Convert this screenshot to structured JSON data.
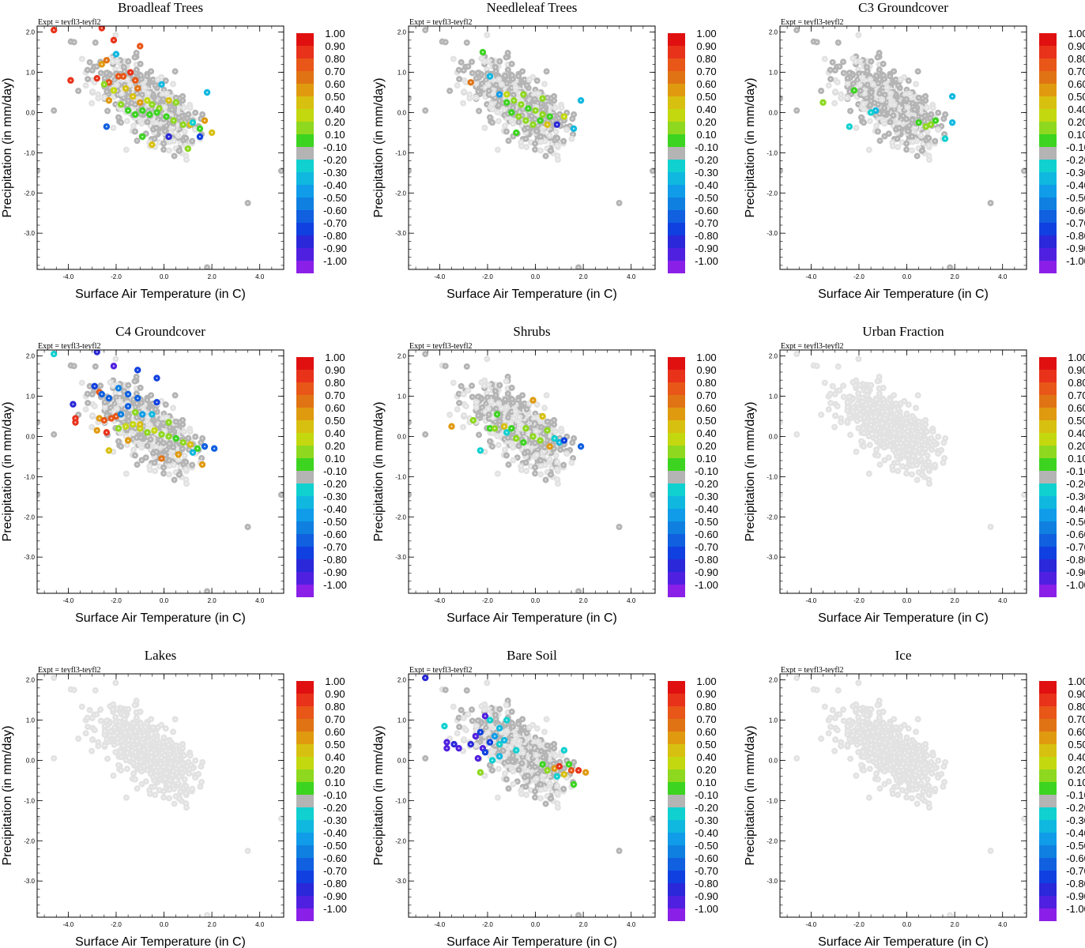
{
  "figure": {
    "experiment_label": "Expt = teyfl3-teyfl2",
    "xlabel": "Surface Air Temperature (in C)",
    "ylabel": "Precipitation (in mm/day)"
  },
  "colorbar": {
    "labels": [
      "1.00",
      "0.90",
      "0.80",
      "0.70",
      "0.60",
      "0.50",
      "0.40",
      "0.20",
      "0.10",
      "-0.10",
      "-0.20",
      "-0.30",
      "-0.40",
      "-0.50",
      "-0.60",
      "-0.70",
      "-0.80",
      "-0.90",
      "-1.00"
    ],
    "colors": [
      "#e01010",
      "#e8321a",
      "#e85618",
      "#e07414",
      "#e09a10",
      "#d8c010",
      "#c4d810",
      "#8ed820",
      "#3cd420",
      "#b4b4b4",
      "#10d0d0",
      "#10b8e0",
      "#109ce8",
      "#1080e0",
      "#1060e0",
      "#1040e0",
      "#2a28d8",
      "#5020e0",
      "#8a20e8"
    ]
  },
  "chart_data": [
    {
      "type": "scatter",
      "title": "Broadleaf Trees",
      "xlabel": "Surface Air Temperature (in C)",
      "ylabel": "Precipitation (in mm/day)",
      "xlim": [
        -5.3,
        5.0
      ],
      "ylim": [
        -3.9,
        2.15
      ],
      "xticks": [
        "-4.0",
        "-2.0",
        "0.0",
        "2.0",
        "4.0"
      ],
      "yticks": [
        "2.0",
        "1.0",
        "0.0",
        "-1.0",
        "-2.0",
        "-3.0"
      ],
      "colored_points": [
        [
          -4.6,
          2.05,
          0.95
        ],
        [
          -2.6,
          2.1,
          0.95
        ],
        [
          -2.1,
          1.8,
          0.9
        ],
        [
          -1.0,
          1.65,
          0.85
        ],
        [
          -3.9,
          0.8,
          0.9
        ],
        [
          -2.8,
          0.85,
          0.9
        ],
        [
          -2.3,
          0.75,
          0.85
        ],
        [
          -1.9,
          0.9,
          0.75
        ],
        [
          -1.7,
          0.9,
          0.8
        ],
        [
          -1.4,
          1.0,
          0.9
        ],
        [
          -1.2,
          0.8,
          0.75
        ],
        [
          -1.1,
          0.6,
          0.7
        ],
        [
          -2.6,
          1.2,
          0.55
        ],
        [
          -2.4,
          1.3,
          0.7
        ],
        [
          -2.0,
          1.45,
          -0.35
        ],
        [
          -2.5,
          0.7,
          0.3
        ],
        [
          -2.3,
          0.3,
          0.6
        ],
        [
          -2.1,
          0.55,
          0.4
        ],
        [
          -1.6,
          0.6,
          0.5
        ],
        [
          -1.3,
          0.4,
          0.45
        ],
        [
          -1.0,
          0.25,
          0.6
        ],
        [
          -0.7,
          0.3,
          0.4
        ],
        [
          -0.5,
          0.2,
          0.3
        ],
        [
          -0.2,
          0.1,
          0.2
        ],
        [
          0.2,
          0.3,
          0.5
        ],
        [
          0.5,
          0.25,
          0.3
        ],
        [
          -1.8,
          0.2,
          0.2
        ],
        [
          -1.5,
          0.05,
          0.15
        ],
        [
          -1.2,
          -0.05,
          0.15
        ],
        [
          -0.9,
          0.05,
          0.15
        ],
        [
          -0.6,
          -0.05,
          0.15
        ],
        [
          -0.3,
          0.0,
          0.15
        ],
        [
          0.1,
          -0.1,
          0.15
        ],
        [
          0.4,
          -0.2,
          0.2
        ],
        [
          0.8,
          -0.3,
          0.2
        ],
        [
          1.1,
          -0.3,
          0.45
        ],
        [
          1.5,
          -0.4,
          0.15
        ],
        [
          1.7,
          -0.2,
          0.6
        ],
        [
          2.0,
          -0.5,
          0.45
        ],
        [
          -0.5,
          -0.8,
          0.5
        ],
        [
          0.2,
          -0.6,
          -0.8
        ],
        [
          1.0,
          -0.9,
          0.2
        ],
        [
          1.5,
          -0.6,
          -0.7
        ],
        [
          -2.4,
          -0.35,
          -0.6
        ],
        [
          -0.1,
          0.7,
          -0.35
        ],
        [
          1.8,
          0.5,
          -0.3
        ],
        [
          1.2,
          -0.25,
          -0.25
        ],
        [
          -0.9,
          -0.6,
          0.15
        ]
      ]
    },
    {
      "type": "scatter",
      "title": "Needleleaf Trees",
      "xlabel": "Surface Air Temperature (in C)",
      "ylabel": "Precipitation (in mm/day)",
      "xlim": [
        -5.3,
        5.0
      ],
      "ylim": [
        -3.9,
        2.15
      ],
      "xticks": [
        "-4.0",
        "-2.0",
        "0.0",
        "2.0",
        "4.0"
      ],
      "yticks": [
        "2.0",
        "1.0",
        "0.0",
        "-1.0",
        "-2.0",
        "-3.0"
      ],
      "colored_points": [
        [
          -2.2,
          1.5,
          0.15
        ],
        [
          -1.9,
          0.9,
          -0.35
        ],
        [
          -2.7,
          0.75,
          0.7
        ],
        [
          -1.2,
          0.45,
          0.4
        ],
        [
          -0.9,
          0.3,
          0.3
        ],
        [
          -0.6,
          0.2,
          0.2
        ],
        [
          -0.3,
          0.1,
          0.15
        ],
        [
          0.0,
          0.05,
          0.2
        ],
        [
          0.3,
          -0.05,
          0.3
        ],
        [
          0.6,
          -0.1,
          0.15
        ],
        [
          -1.0,
          0.0,
          0.15
        ],
        [
          -0.7,
          -0.1,
          0.2
        ],
        [
          -0.4,
          -0.2,
          0.3
        ],
        [
          -0.1,
          -0.3,
          0.2
        ],
        [
          0.2,
          -0.2,
          0.15
        ],
        [
          0.5,
          -0.3,
          0.45
        ],
        [
          0.9,
          -0.3,
          -0.8
        ],
        [
          1.6,
          -0.4,
          -0.35
        ],
        [
          1.9,
          0.3,
          -0.3
        ],
        [
          -1.2,
          0.25,
          0.15
        ],
        [
          -0.5,
          0.45,
          0.2
        ],
        [
          0.3,
          0.35,
          0.2
        ],
        [
          -1.5,
          0.45,
          -0.45
        ],
        [
          -0.8,
          -0.5,
          0.15
        ],
        [
          1.2,
          -0.1,
          0.35
        ]
      ]
    },
    {
      "type": "scatter",
      "title": "C3 Groundcover",
      "xlabel": "Surface Air Temperature (in C)",
      "ylabel": "Precipitation (in mm/day)",
      "xlim": [
        -5.3,
        5.0
      ],
      "ylim": [
        -3.9,
        2.15
      ],
      "xticks": [
        "-4.0",
        "-2.0",
        "0.0",
        "2.0",
        "4.0"
      ],
      "yticks": [
        "2.0",
        "1.0",
        "0.0",
        "-1.0",
        "-2.0",
        "-3.0"
      ],
      "colored_points": [
        [
          -3.5,
          0.25,
          0.25
        ],
        [
          -2.2,
          0.55,
          0.15
        ],
        [
          -2.4,
          -0.35,
          -0.25
        ],
        [
          -1.3,
          0.05,
          -0.35
        ],
        [
          0.5,
          -0.25,
          0.15
        ],
        [
          0.8,
          -0.35,
          0.2
        ],
        [
          1.0,
          -0.3,
          0.2
        ],
        [
          1.2,
          -0.2,
          0.15
        ],
        [
          1.6,
          -0.65,
          -0.25
        ],
        [
          1.9,
          -0.25,
          -0.3
        ],
        [
          1.9,
          0.4,
          -0.3
        ],
        [
          -1.5,
          0.0,
          -0.2
        ]
      ]
    },
    {
      "type": "scatter",
      "title": "C4 Groundcover",
      "xlabel": "Surface Air Temperature (in C)",
      "ylabel": "Precipitation (in mm/day)",
      "xlim": [
        -5.3,
        5.0
      ],
      "ylim": [
        -3.9,
        2.15
      ],
      "xticks": [
        "-4.0",
        "-2.0",
        "0.0",
        "2.0",
        "4.0"
      ],
      "yticks": [
        "2.0",
        "1.0",
        "0.0",
        "-1.0",
        "-2.0",
        "-3.0"
      ],
      "colored_points": [
        [
          -4.6,
          2.05,
          -0.2
        ],
        [
          -2.8,
          2.1,
          -0.85
        ],
        [
          -2.1,
          1.75,
          -0.9
        ],
        [
          -1.1,
          1.65,
          -0.75
        ],
        [
          -0.3,
          1.45,
          -0.65
        ],
        [
          -2.7,
          1.1,
          0.85
        ],
        [
          -2.9,
          1.25,
          -0.75
        ],
        [
          -2.6,
          1.05,
          -0.6
        ],
        [
          -2.3,
          0.95,
          -0.55
        ],
        [
          -1.9,
          1.2,
          -0.5
        ],
        [
          -1.5,
          1.05,
          -0.6
        ],
        [
          -1.1,
          0.95,
          -0.6
        ],
        [
          -3.8,
          0.8,
          -0.85
        ],
        [
          -3.7,
          0.45,
          0.9
        ],
        [
          -3.7,
          0.35,
          0.95
        ],
        [
          -2.7,
          0.45,
          0.6
        ],
        [
          -2.5,
          0.4,
          0.85
        ],
        [
          -2.2,
          0.45,
          0.75
        ],
        [
          -2.8,
          0.15,
          0.6
        ],
        [
          -2.4,
          0.1,
          0.95
        ],
        [
          -2.0,
          0.5,
          0.75
        ],
        [
          -1.8,
          0.55,
          -0.5
        ],
        [
          -1.5,
          0.75,
          -0.6
        ],
        [
          -1.2,
          0.6,
          0.3
        ],
        [
          -0.9,
          0.55,
          -0.4
        ],
        [
          -0.3,
          0.85,
          -0.65
        ],
        [
          -1.9,
          0.2,
          0.3
        ],
        [
          -1.6,
          0.25,
          0.4
        ],
        [
          -1.3,
          0.3,
          0.35
        ],
        [
          -1.0,
          0.2,
          0.4
        ],
        [
          -0.7,
          0.1,
          0.3
        ],
        [
          -0.4,
          0.15,
          0.35
        ],
        [
          -0.1,
          0.05,
          0.3
        ],
        [
          0.2,
          0.0,
          0.2
        ],
        [
          0.5,
          -0.05,
          0.15
        ],
        [
          0.8,
          -0.15,
          0.3
        ],
        [
          1.1,
          -0.2,
          0.45
        ],
        [
          1.4,
          -0.3,
          0.15
        ],
        [
          1.7,
          -0.25,
          -0.55
        ],
        [
          2.1,
          -0.3,
          -0.55
        ],
        [
          -2.3,
          -0.35,
          0.5
        ],
        [
          -0.1,
          -0.55,
          0.7
        ],
        [
          0.6,
          -0.45,
          0.6
        ],
        [
          1.6,
          -0.7,
          0.6
        ],
        [
          0.2,
          0.35,
          0.2
        ],
        [
          -0.5,
          0.55,
          -0.35
        ],
        [
          -1.0,
          0.3,
          0.5
        ],
        [
          -1.5,
          -0.1,
          0.55
        ],
        [
          1.2,
          -0.4,
          -0.3
        ]
      ]
    },
    {
      "type": "scatter",
      "title": "Shrubs",
      "xlabel": "Surface Air Temperature (in C)",
      "ylabel": "Precipitation (in mm/day)",
      "xlim": [
        -5.3,
        5.0
      ],
      "ylim": [
        -3.9,
        2.15
      ],
      "xticks": [
        "-4.0",
        "-2.0",
        "0.0",
        "2.0",
        "4.0"
      ],
      "yticks": [
        "2.0",
        "1.0",
        "0.0",
        "-1.0",
        "-2.0",
        "-3.0"
      ],
      "colored_points": [
        [
          -3.5,
          0.25,
          0.6
        ],
        [
          -2.6,
          0.4,
          0.2
        ],
        [
          -2.3,
          -0.35,
          -0.25
        ],
        [
          -1.9,
          0.2,
          0.15
        ],
        [
          -1.6,
          0.55,
          0.15
        ],
        [
          -1.2,
          0.1,
          -0.25
        ],
        [
          -1.0,
          0.2,
          0.15
        ],
        [
          -0.8,
          -0.05,
          0.2
        ],
        [
          -0.5,
          -0.15,
          0.15
        ],
        [
          -0.1,
          0.0,
          0.2
        ],
        [
          0.2,
          -0.1,
          0.25
        ],
        [
          0.3,
          0.5,
          0.45
        ],
        [
          0.5,
          0.15,
          0.3
        ],
        [
          0.8,
          -0.05,
          -0.25
        ],
        [
          1.0,
          -0.15,
          -0.35
        ],
        [
          1.2,
          -0.1,
          -0.65
        ],
        [
          1.9,
          -0.25,
          -0.55
        ],
        [
          -0.1,
          0.9,
          0.6
        ],
        [
          -0.4,
          0.2,
          0.3
        ],
        [
          0.6,
          -0.25,
          0.6
        ],
        [
          -1.3,
          0.25,
          0.5
        ],
        [
          -1.7,
          0.2,
          0.3
        ]
      ]
    },
    {
      "type": "scatter",
      "title": "Urban Fraction",
      "xlabel": "Surface Air Temperature (in C)",
      "ylabel": "Precipitation (in mm/day)",
      "xlim": [
        -5.3,
        5.0
      ],
      "ylim": [
        -3.9,
        2.15
      ],
      "xticks": [
        "-4.0",
        "-2.0",
        "0.0",
        "2.0",
        "4.0"
      ],
      "yticks": [
        "2.0",
        "1.0",
        "0.0",
        "-1.0",
        "-2.0",
        "-3.0"
      ],
      "colored_points": []
    },
    {
      "type": "scatter",
      "title": "Lakes",
      "xlabel": "Surface Air Temperature (in C)",
      "ylabel": "Precipitation (in mm/day)",
      "xlim": [
        -5.3,
        5.0
      ],
      "ylim": [
        -3.9,
        2.15
      ],
      "xticks": [
        "-4.0",
        "-2.0",
        "0.0",
        "2.0",
        "4.0"
      ],
      "yticks": [
        "2.0",
        "1.0",
        "0.0",
        "-1.0",
        "-2.0",
        "-3.0"
      ],
      "colored_points": []
    },
    {
      "type": "scatter",
      "title": "Bare Soil",
      "xlabel": "Surface Air Temperature (in C)",
      "ylabel": "Precipitation (in mm/day)",
      "xlim": [
        -5.3,
        5.0
      ],
      "ylim": [
        -3.9,
        2.15
      ],
      "xticks": [
        "-4.0",
        "-2.0",
        "0.0",
        "2.0",
        "4.0"
      ],
      "yticks": [
        "2.0",
        "1.0",
        "0.0",
        "-1.0",
        "-2.0",
        "-3.0"
      ],
      "colored_points": [
        [
          -4.6,
          2.05,
          -0.85
        ],
        [
          -3.8,
          0.85,
          -0.25
        ],
        [
          -2.1,
          1.1,
          -0.9
        ],
        [
          -1.9,
          1.0,
          -0.2
        ],
        [
          -1.5,
          0.8,
          -0.3
        ],
        [
          -1.2,
          1.0,
          -0.2
        ],
        [
          -3.7,
          0.45,
          -0.9
        ],
        [
          -3.7,
          0.3,
          -0.9
        ],
        [
          -3.4,
          0.4,
          -0.85
        ],
        [
          -3.2,
          0.3,
          -0.9
        ],
        [
          -2.7,
          0.4,
          -0.85
        ],
        [
          -2.5,
          0.6,
          -0.9
        ],
        [
          -2.3,
          0.7,
          -0.75
        ],
        [
          -2.2,
          0.3,
          -0.9
        ],
        [
          -1.9,
          0.45,
          -0.7
        ],
        [
          -1.7,
          0.6,
          -0.4
        ],
        [
          -1.5,
          0.4,
          -0.25
        ],
        [
          -1.3,
          0.5,
          -0.3
        ],
        [
          -2.4,
          0.05,
          -0.9
        ],
        [
          -2.1,
          0.2,
          -0.75
        ],
        [
          -2.3,
          -0.3,
          0.3
        ],
        [
          -1.8,
          0.0,
          -0.25
        ],
        [
          -1.5,
          0.1,
          -0.3
        ],
        [
          1.2,
          0.25,
          -0.25
        ],
        [
          0.3,
          -0.1,
          0.15
        ],
        [
          0.5,
          -0.25,
          0.2
        ],
        [
          0.8,
          -0.2,
          0.6
        ],
        [
          1.0,
          -0.15,
          0.95
        ],
        [
          1.2,
          -0.35,
          0.5
        ],
        [
          1.5,
          -0.25,
          0.8
        ],
        [
          1.8,
          -0.25,
          0.95
        ],
        [
          2.1,
          -0.3,
          0.6
        ],
        [
          1.6,
          -0.6,
          0.15
        ],
        [
          0.9,
          -0.4,
          -0.25
        ],
        [
          1.4,
          -0.1,
          0.15
        ],
        [
          -0.8,
          0.25,
          -0.25
        ]
      ]
    },
    {
      "type": "scatter",
      "title": "Ice",
      "xlabel": "Surface Air Temperature (in C)",
      "ylabel": "Precipitation (in mm/day)",
      "xlim": [
        -5.3,
        5.0
      ],
      "ylim": [
        -3.9,
        2.15
      ],
      "xticks": [
        "-4.0",
        "-2.0",
        "0.0",
        "2.0",
        "4.0"
      ],
      "yticks": [
        "2.0",
        "1.0",
        "0.0",
        "-1.0",
        "-2.0",
        "-3.0"
      ],
      "colored_points": []
    }
  ]
}
